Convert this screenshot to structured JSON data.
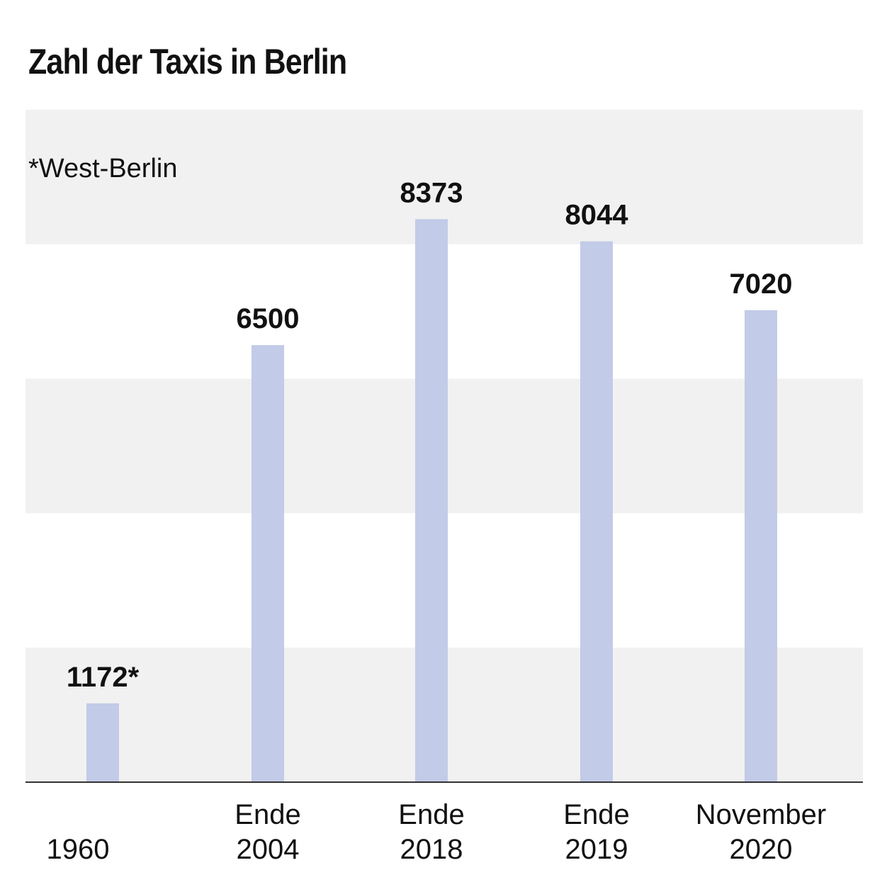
{
  "chart_data": {
    "type": "bar",
    "title": "Zahl der Taxis in Berlin",
    "footnote": "*West-Berlin",
    "categories": [
      [
        "",
        "1960"
      ],
      [
        "Ende",
        "2004"
      ],
      [
        "Ende",
        "2018"
      ],
      [
        "Ende",
        "2019"
      ],
      [
        "November",
        "2020"
      ]
    ],
    "values": [
      1172,
      6500,
      8373,
      8044,
      7020
    ],
    "value_labels": [
      "1172*",
      "6500",
      "8373",
      "8044",
      "7020"
    ],
    "ylim": [
      0,
      10000
    ],
    "grid": "alternating horizontal bands",
    "colors": {
      "bar": "#c2cbe7",
      "band": "#f1f1f1",
      "axis": "#333333",
      "text": "#111111"
    }
  }
}
